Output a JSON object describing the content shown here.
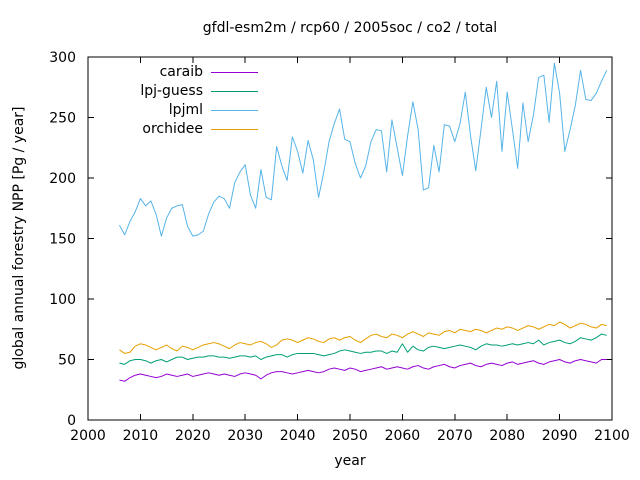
{
  "title": "gfdl-esm2m / rcp60 / 2005soc / co2 / total",
  "chart_data": {
    "type": "line",
    "title": "gfdl-esm2m / rcp60 / 2005soc / co2 / total",
    "xlabel": "year",
    "ylabel": "global annual forestry NPP [Pg / year]",
    "xlim": [
      2000,
      2100
    ],
    "ylim": [
      0,
      300
    ],
    "xticks": [
      2000,
      2010,
      2020,
      2030,
      2040,
      2050,
      2060,
      2070,
      2080,
      2090,
      2100
    ],
    "yticks": [
      0,
      50,
      100,
      150,
      200,
      250,
      300
    ],
    "grid": false,
    "legend_position": "top-left-inside",
    "x": [
      2006,
      2007,
      2008,
      2009,
      2010,
      2011,
      2012,
      2013,
      2014,
      2015,
      2016,
      2017,
      2018,
      2019,
      2020,
      2021,
      2022,
      2023,
      2024,
      2025,
      2026,
      2027,
      2028,
      2029,
      2030,
      2031,
      2032,
      2033,
      2034,
      2035,
      2036,
      2037,
      2038,
      2039,
      2040,
      2041,
      2042,
      2043,
      2044,
      2045,
      2046,
      2047,
      2048,
      2049,
      2050,
      2051,
      2052,
      2053,
      2054,
      2055,
      2056,
      2057,
      2058,
      2059,
      2060,
      2061,
      2062,
      2063,
      2064,
      2065,
      2066,
      2067,
      2068,
      2069,
      2070,
      2071,
      2072,
      2073,
      2074,
      2075,
      2076,
      2077,
      2078,
      2079,
      2080,
      2081,
      2082,
      2083,
      2084,
      2085,
      2086,
      2087,
      2088,
      2089,
      2090,
      2091,
      2092,
      2093,
      2094,
      2095,
      2096,
      2097,
      2098,
      2099
    ],
    "series": [
      {
        "name": "caraib",
        "color": "#9400d3",
        "values": [
          33,
          32,
          35,
          37,
          38,
          37,
          36,
          35,
          36,
          38,
          37,
          36,
          37,
          38,
          36,
          37,
          38,
          39,
          38,
          37,
          38,
          37,
          36,
          38,
          39,
          38,
          37,
          34,
          37,
          39,
          40,
          40,
          39,
          38,
          39,
          40,
          41,
          40,
          39,
          40,
          42,
          43,
          42,
          41,
          43,
          42,
          40,
          41,
          42,
          43,
          44,
          42,
          43,
          44,
          43,
          42,
          44,
          45,
          43,
          42,
          44,
          45,
          46,
          44,
          43,
          45,
          46,
          47,
          45,
          44,
          46,
          47,
          46,
          45,
          47,
          48,
          46,
          47,
          48,
          49,
          47,
          46,
          48,
          49,
          50,
          48,
          47,
          49,
          50,
          49,
          48,
          47,
          50,
          50
        ]
      },
      {
        "name": "lpj-guess",
        "color": "#009e73",
        "values": [
          47,
          46,
          49,
          50,
          50,
          49,
          47,
          49,
          50,
          48,
          50,
          52,
          52,
          50,
          51,
          52,
          52,
          53,
          53,
          52,
          52,
          51,
          52,
          53,
          53,
          52,
          53,
          50,
          52,
          53,
          54,
          54,
          52,
          54,
          55,
          55,
          55,
          55,
          54,
          53,
          54,
          55,
          57,
          58,
          57,
          56,
          55,
          56,
          56,
          57,
          57,
          55,
          57,
          56,
          63,
          56,
          61,
          58,
          57,
          60,
          61,
          60,
          59,
          60,
          61,
          62,
          61,
          60,
          58,
          61,
          63,
          62,
          62,
          61,
          62,
          63,
          62,
          63,
          64,
          63,
          66,
          62,
          64,
          65,
          66,
          64,
          63,
          65,
          68,
          67,
          66,
          68,
          71,
          70
        ]
      },
      {
        "name": "lpjml",
        "color": "#56b4e9",
        "values": [
          161,
          153,
          164,
          172,
          183,
          177,
          181,
          170,
          152,
          167,
          175,
          177,
          178,
          160,
          152,
          153,
          156,
          170,
          180,
          185,
          183,
          175,
          196,
          205,
          211,
          186,
          175,
          207,
          184,
          182,
          226,
          210,
          198,
          234,
          222,
          204,
          231,
          215,
          184,
          205,
          230,
          245,
          257,
          232,
          230,
          212,
          200,
          210,
          230,
          240,
          239,
          205,
          248,
          225,
          202,
          235,
          263,
          240,
          190,
          192,
          227,
          205,
          244,
          243,
          230,
          245,
          271,
          235,
          206,
          240,
          275,
          250,
          280,
          222,
          271,
          240,
          208,
          262,
          230,
          252,
          283,
          285,
          246,
          295,
          270,
          222,
          240,
          260,
          289,
          265,
          264,
          270,
          280,
          289
        ]
      },
      {
        "name": "orchidee",
        "color": "#e69f00",
        "values": [
          58,
          55,
          56,
          61,
          63,
          62,
          60,
          58,
          60,
          62,
          59,
          57,
          61,
          60,
          58,
          60,
          62,
          63,
          64,
          63,
          61,
          59,
          62,
          64,
          63,
          62,
          64,
          65,
          63,
          60,
          62,
          66,
          67,
          66,
          64,
          66,
          68,
          67,
          65,
          64,
          67,
          68,
          66,
          68,
          69,
          66,
          64,
          67,
          70,
          71,
          69,
          68,
          71,
          70,
          68,
          71,
          73,
          71,
          69,
          72,
          71,
          70,
          73,
          74,
          72,
          75,
          74,
          73,
          75,
          74,
          72,
          74,
          76,
          75,
          77,
          76,
          74,
          76,
          78,
          77,
          75,
          77,
          79,
          78,
          81,
          79,
          76,
          78,
          80,
          79,
          77,
          76,
          79,
          78
        ]
      }
    ]
  }
}
